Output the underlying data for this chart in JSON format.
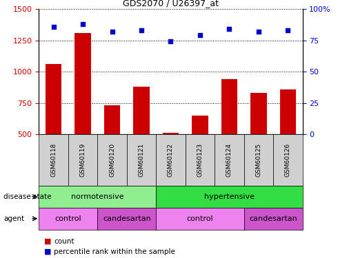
{
  "title": "GDS2070 / U26397_at",
  "samples": [
    "GSM60118",
    "GSM60119",
    "GSM60120",
    "GSM60121",
    "GSM60122",
    "GSM60123",
    "GSM60124",
    "GSM60125",
    "GSM60126"
  ],
  "counts": [
    1060,
    1310,
    730,
    880,
    510,
    650,
    940,
    830,
    860
  ],
  "percentiles": [
    86,
    88,
    82,
    83,
    74,
    79,
    84,
    82,
    83
  ],
  "ylim_left": [
    500,
    1500
  ],
  "ylim_right": [
    0,
    100
  ],
  "yticks_left": [
    500,
    750,
    1000,
    1250,
    1500
  ],
  "yticks_right": [
    0,
    25,
    50,
    75,
    100
  ],
  "bar_color": "#cc0000",
  "dot_color": "#0000cc",
  "color_normotensive": "#90ee90",
  "color_hypertensive": "#33dd44",
  "color_control": "#ee82ee",
  "color_candesartan": "#cc55cc",
  "ylabel_left_color": "#cc0000",
  "ylabel_right_color": "#0000cc",
  "fig_width": 4.9,
  "fig_height": 3.75,
  "dpi": 100
}
